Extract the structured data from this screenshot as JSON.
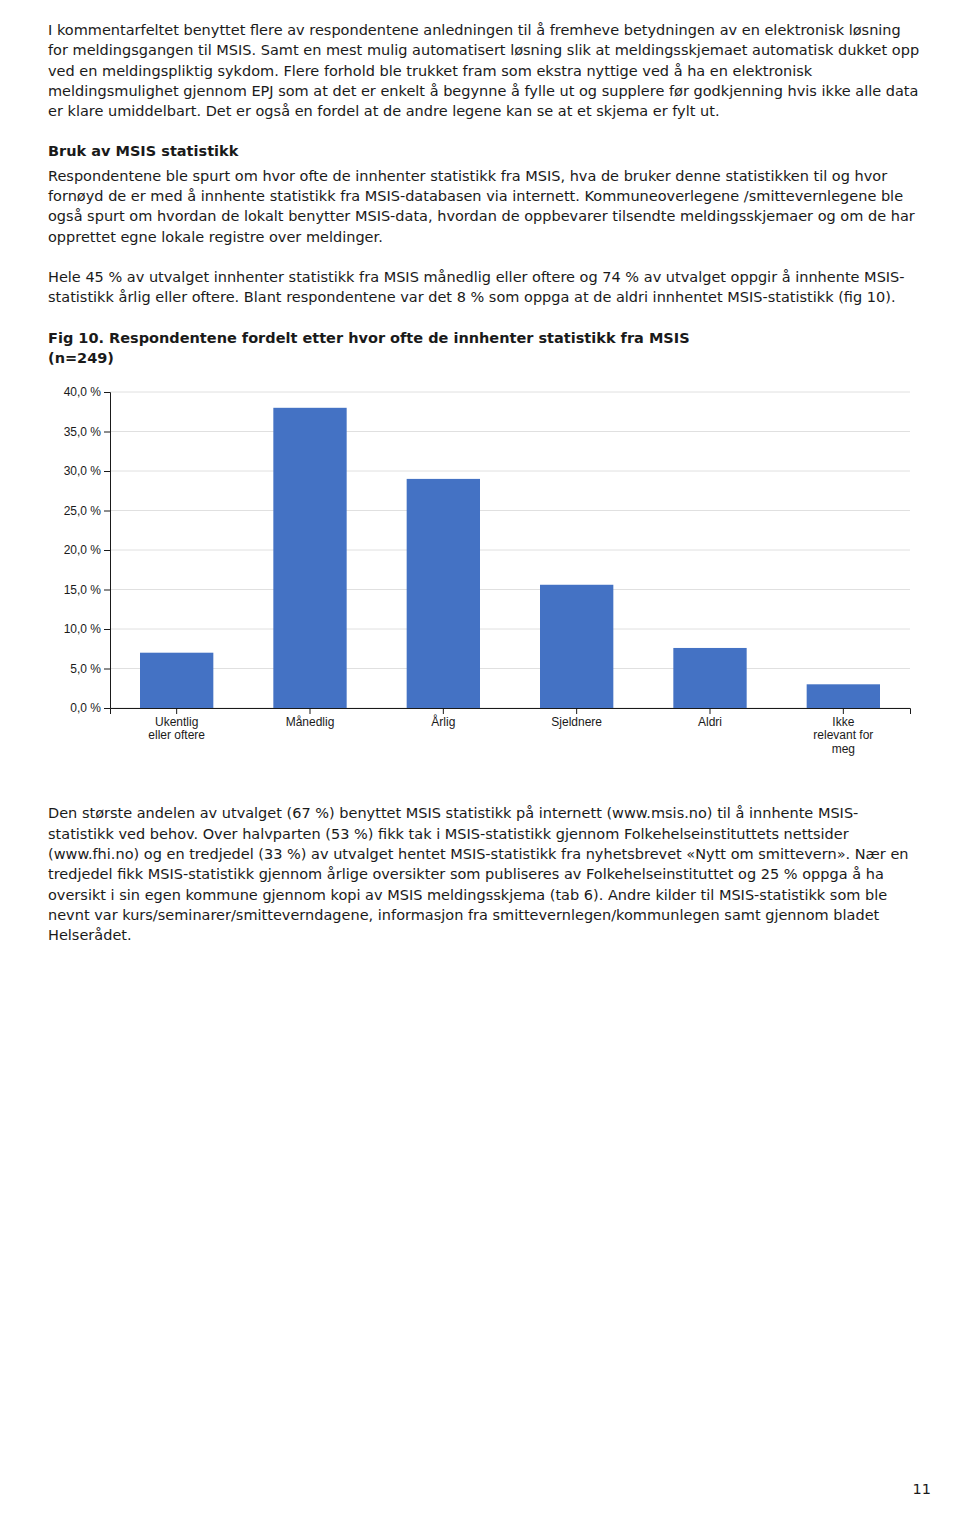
{
  "body_text": "I kommentarfeltet benyttet flere av respondentene anledningen til å fremheve betydningen av en elektronisk løsning for meldingsgangen til MSIS. Samt en mest mulig automatisert løsning slik at meldingsskjemaet automatisk dukket opp ved en meldingspliktig sykdom. Flere forhold ble trukket fram som ekstra nyttige ved å ha en elektronisk meldingsmulighet gjennom EPJ som at det er enkelt å begynne å fylle ut og supplere før godkjenning hvis ikke alle data er klare umiddelbart. Det er også en fordel at de andre legene kan se at et skjema er fylt ut.",
  "section_title": "Bruk av MSIS statistikk",
  "section_body": "Respondentene ble spurt om hvor ofte de innhenter statistikk fra MSIS, hva de bruker denne statistikken til og hvor fornøyd de er med å innhente statistikk fra MSIS-databasen via internett. Kommuneoverlegene /smittevernlegene ble også spurt om hvordan de lokalt benytter MSIS-data, hvordan de oppbevarer tilsendte meldingsskjemaer og om de har opprettet egne lokale registre over meldinger.",
  "paragraph2": "Hele 45 % av utvalget innhenter statistikk fra MSIS månedlig eller oftere og 74 % av utvalget oppgir å innhente MSIS-statistikk årlig eller oftere. Blant respondentene var det 8 % som oppga at de aldri innhentet MSIS-statistikk (fig 10).",
  "footer_text": "Den største andelen av utvalget (67 %) benyttet MSIS statistikk på internett (www.msis.no) til å innhente MSIS-statistikk ved behov. Over halvparten (53 %) fikk tak i MSIS-statistikk gjennom Folkehelseinstituttets nettsider (www.fhi.no) og en tredjedel (33 %) av utvalget hentet MSIS-statistikk fra nyhetsbrevet «Nytt om smittevern». Nær en tredjedel fikk MSIS-statistikk gjennom årlige oversikter som publiseres av Folkehelseinstituttet og 25 % oppga å ha oversikt i sin egen kommune gjennom kopi av MSIS meldingsskjema (tab 6). Andre kilder til MSIS-statistikk som ble nevnt var kurs/seminarer/smitteverndagene, informasjon fra smittevernlegen/kommunlegen samt gjennom bladet Helserådet.",
  "page_number": "11",
  "chart_data": {
    "type": "bar",
    "title": "Fig 10. Respondentene fordelt etter hvor ofte de innhenter statistikk fra MSIS",
    "subtitle": "(n=249)",
    "categories": [
      "Ukentlig\neller oftere",
      "Månedlig",
      "Årlig",
      "Sjeldnere",
      "Aldri",
      "Ikke\nrelevant for\nmeg"
    ],
    "values": [
      7.0,
      38.0,
      29.0,
      15.6,
      7.6,
      3.0
    ],
    "color": "#4472C4",
    "ylim": [
      0,
      40.0
    ],
    "yticks": [
      {
        "value": 0.0,
        "label": "0,0 %"
      },
      {
        "value": 5.0,
        "label": "5,0 %"
      },
      {
        "value": 10.0,
        "label": "10,0 %"
      },
      {
        "value": 15.0,
        "label": "15,0 %"
      },
      {
        "value": 20.0,
        "label": "20,0 %"
      },
      {
        "value": 25.0,
        "label": "25,0 %"
      },
      {
        "value": 30.0,
        "label": "30,0 %"
      },
      {
        "value": 35.0,
        "label": "35,0 %"
      },
      {
        "value": 40.0,
        "label": "40,0 %"
      }
    ],
    "grid": true
  }
}
